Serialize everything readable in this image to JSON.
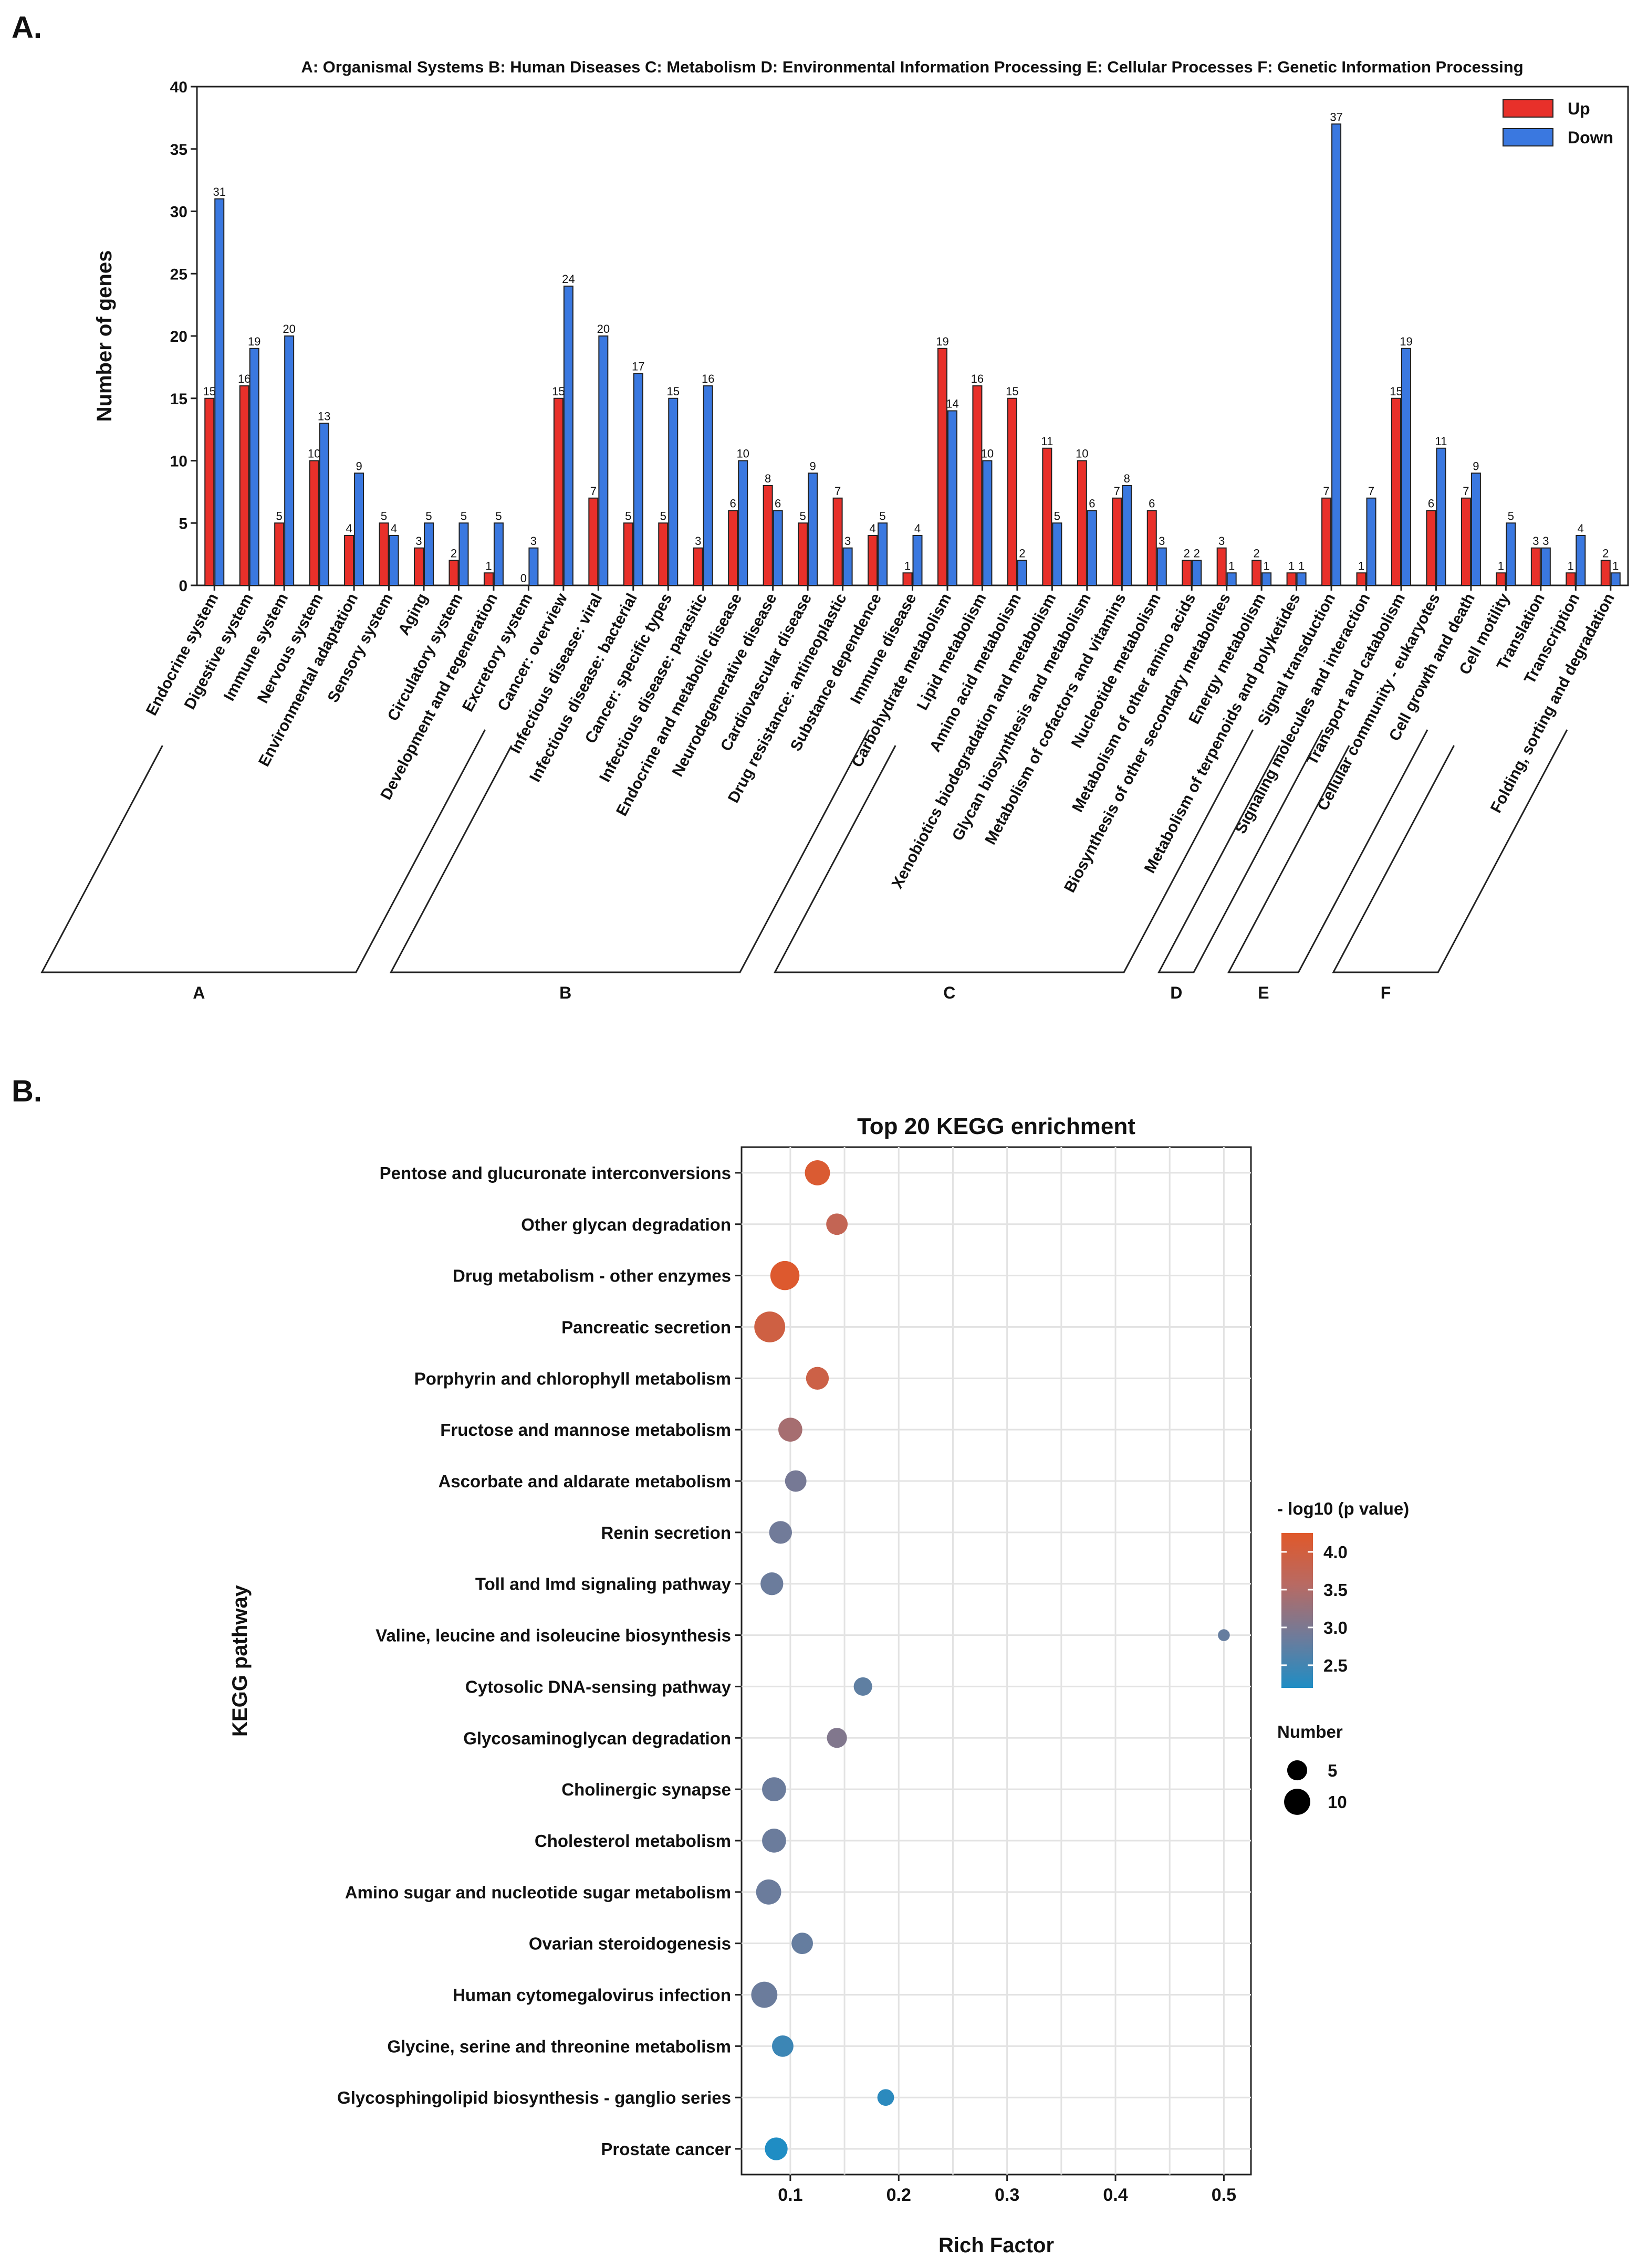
{
  "figure": {
    "panel_a_label": "A.",
    "panel_b_label": "B."
  },
  "chart_data": [
    {
      "type": "bar",
      "ylabel": "Number of genes",
      "xlabel": "",
      "ylim": [
        0,
        40
      ],
      "yticks": [
        0,
        5,
        10,
        15,
        20,
        25,
        30,
        35,
        40
      ],
      "grid": false,
      "legend_position": "top-right",
      "category_key": "A: Organismal Systems   B: Human Diseases   C: Metabolism   D: Environmental Information Processing   E: Cellular Processes   F: Genetic Information Processing",
      "categories": [
        "Endocrine system",
        "Digestive system",
        "Immune system",
        "Nervous system",
        "Environmental adaptation",
        "Sensory system",
        "Aging",
        "Circulatory system",
        "Development and regeneration",
        "Excretory system",
        "Cancer: overview",
        "Infectious disease: viral",
        "Infectious disease: bacterial",
        "Cancer: specific types",
        "Infectious disease: parasitic",
        "Endocrine and metabolic disease",
        "Neurodegenerative disease",
        "Cardiovascular disease",
        "Drug resistance: antineoplastic",
        "Substance dependence",
        "Immune disease",
        "Carbohydrate metabolism",
        "Lipid metabolism",
        "Amino acid metabolism",
        "Xenobiotics biodegradation and metabolism",
        "Glycan biosynthesis and metabolism",
        "Metabolism of cofactors and vitamins",
        "Nucleotide metabolism",
        "Metabolism of other amino acids",
        "Biosynthesis of other secondary metabolites",
        "Energy metabolism",
        "Metabolism of terpenoids and polyketides",
        "Signal transduction",
        "Signaling molecules and interaction",
        "Transport and catabolism",
        "Cellular community - eukaryotes",
        "Cell growth and death",
        "Cell motility",
        "Translation",
        "Transcription",
        "Folding, sorting and degradation"
      ],
      "series": [
        {
          "name": "Up",
          "color": "#e8302a",
          "values": [
            15,
            16,
            5,
            10,
            4,
            5,
            3,
            2,
            1,
            0,
            15,
            7,
            5,
            5,
            3,
            6,
            8,
            5,
            7,
            4,
            1,
            19,
            16,
            15,
            11,
            10,
            7,
            6,
            2,
            3,
            2,
            1,
            7,
            1,
            15,
            6,
            7,
            1,
            3,
            1,
            2
          ]
        },
        {
          "name": "Down",
          "color": "#3a78e0",
          "values": [
            31,
            19,
            20,
            13,
            9,
            4,
            5,
            5,
            5,
            3,
            24,
            20,
            17,
            15,
            16,
            10,
            6,
            9,
            3,
            5,
            4,
            14,
            10,
            2,
            5,
            6,
            8,
            3,
            2,
            1,
            1,
            1,
            37,
            7,
            19,
            11,
            9,
            5,
            3,
            4,
            1
          ]
        }
      ],
      "groups": [
        {
          "label": "A",
          "start": 0,
          "end": 9
        },
        {
          "label": "B",
          "start": 10,
          "end": 20
        },
        {
          "label": "C",
          "start": 21,
          "end": 31
        },
        {
          "label": "D",
          "start": 32,
          "end": 33
        },
        {
          "label": "E",
          "start": 34,
          "end": 36
        },
        {
          "label": "F",
          "start": 37,
          "end": 40
        }
      ]
    },
    {
      "type": "scatter",
      "title": "Top 20 KEGG enrichment",
      "xlabel": "Rich Factor",
      "ylabel": "KEGG pathway",
      "xlim": [
        0.055,
        0.525
      ],
      "xticks": [
        0.1,
        0.2,
        0.3,
        0.4,
        0.5
      ],
      "xtick_labels": [
        "0.1",
        "0.2",
        "0.3",
        "0.4",
        "0.5"
      ],
      "grid": true,
      "color_legend": {
        "title": "- log10 (p value)",
        "min": 2.2,
        "max": 4.25,
        "ticks": [
          2.5,
          3.0,
          3.5,
          4.0
        ],
        "tick_labels": [
          "2.5",
          "3.0",
          "3.5",
          "4.0"
        ],
        "colors": [
          "#1f8dc4",
          "#6f7b9a",
          "#b86a63",
          "#e0582a"
        ]
      },
      "size_legend": {
        "title": "Number",
        "values": [
          5,
          10
        ],
        "labels": [
          "5",
          "10"
        ]
      },
      "points": [
        {
          "pathway": "Pentose and glucuronate interconversions",
          "rich_factor": 0.125,
          "log10p": 4.15,
          "number": 9
        },
        {
          "pathway": "Other glycan degradation",
          "rich_factor": 0.143,
          "log10p": 3.75,
          "number": 6
        },
        {
          "pathway": "Drug metabolism - other enzymes",
          "rich_factor": 0.095,
          "log10p": 4.2,
          "number": 13
        },
        {
          "pathway": "Pancreatic secretion",
          "rich_factor": 0.081,
          "log10p": 3.95,
          "number": 15
        },
        {
          "pathway": "Porphyrin and chlorophyll metabolism",
          "rich_factor": 0.125,
          "log10p": 3.9,
          "number": 7
        },
        {
          "pathway": "Fructose and mannose metabolism",
          "rich_factor": 0.1,
          "log10p": 3.4,
          "number": 8
        },
        {
          "pathway": "Ascorbate and aldarate metabolism",
          "rich_factor": 0.105,
          "log10p": 2.95,
          "number": 6
        },
        {
          "pathway": "Renin secretion",
          "rich_factor": 0.091,
          "log10p": 2.9,
          "number": 7
        },
        {
          "pathway": "Toll and Imd signaling pathway",
          "rich_factor": 0.083,
          "log10p": 2.85,
          "number": 7
        },
        {
          "pathway": "Valine, leucine and isoleucine biosynthesis",
          "rich_factor": 0.5,
          "log10p": 2.8,
          "number": 1
        },
        {
          "pathway": "Cytosolic DNA-sensing pathway",
          "rich_factor": 0.167,
          "log10p": 2.75,
          "number": 4
        },
        {
          "pathway": "Glycosaminoglycan degradation",
          "rich_factor": 0.143,
          "log10p": 3.05,
          "number": 5
        },
        {
          "pathway": "Cholinergic synapse",
          "rich_factor": 0.085,
          "log10p": 2.85,
          "number": 8
        },
        {
          "pathway": "Cholesterol metabolism",
          "rich_factor": 0.085,
          "log10p": 2.85,
          "number": 8
        },
        {
          "pathway": "Amino sugar and nucleotide sugar metabolism",
          "rich_factor": 0.08,
          "log10p": 2.85,
          "number": 9
        },
        {
          "pathway": "Ovarian steroidogenesis",
          "rich_factor": 0.111,
          "log10p": 2.8,
          "number": 6
        },
        {
          "pathway": "Human cytomegalovirus infection",
          "rich_factor": 0.076,
          "log10p": 2.85,
          "number": 10
        },
        {
          "pathway": "Glycine, serine and threonine metabolism",
          "rich_factor": 0.093,
          "log10p": 2.45,
          "number": 6
        },
        {
          "pathway": "Glycosphingolipid biosynthesis - ganglio series",
          "rich_factor": 0.188,
          "log10p": 2.3,
          "number": 3
        },
        {
          "pathway": "Prostate cancer",
          "rich_factor": 0.087,
          "log10p": 2.2,
          "number": 7
        }
      ]
    }
  ]
}
